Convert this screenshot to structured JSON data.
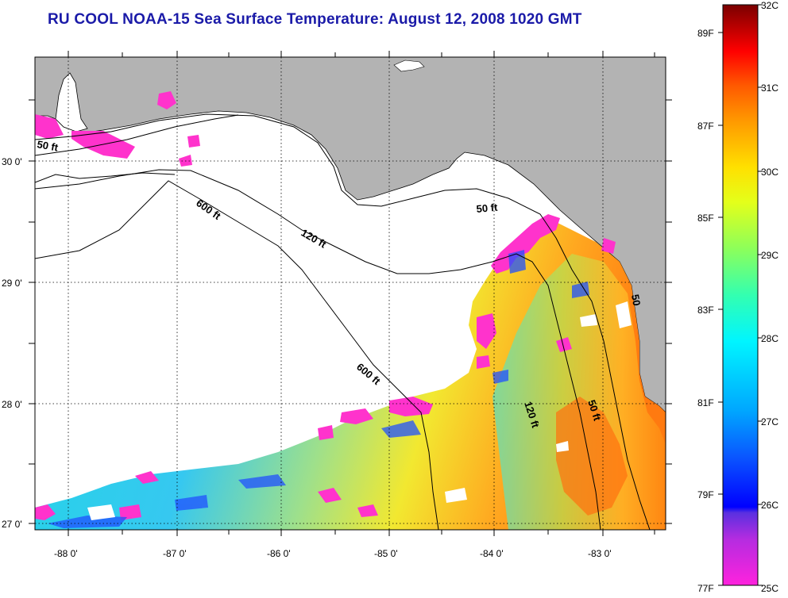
{
  "title": "RU COOL  NOAA-15  Sea Surface Temperature:  August 12, 2008 1020 GMT",
  "map": {
    "lon_range": [
      -88.3,
      -82.5
    ],
    "lat_range": [
      26.95,
      30.85
    ],
    "lon_ticks": [
      {
        "value": -88,
        "label": "-88 0'"
      },
      {
        "value": -87,
        "label": "-87 0'"
      },
      {
        "value": -86,
        "label": "-86 0'"
      },
      {
        "value": -85,
        "label": "-85 0'"
      },
      {
        "value": -84,
        "label": "-84 0'"
      },
      {
        "value": -83,
        "label": "-83 0'"
      }
    ],
    "lat_ticks": [
      {
        "value": 30,
        "label": "30 0'"
      },
      {
        "value": 29,
        "label": "29 0'"
      },
      {
        "value": 28,
        "label": "28 0'"
      },
      {
        "value": 27,
        "label": "27 0'"
      }
    ],
    "contour_labels": [
      "50 ft",
      "600 ft",
      "120 ft",
      "50 ft",
      "600 ft",
      "120 ft",
      "50 ft",
      "50"
    ],
    "colors": {
      "land": "#b3b3b3",
      "water_no_data": "#ffffff",
      "frame": "#000000"
    }
  },
  "colorbar": {
    "celsius_labels": [
      "32C",
      "31C",
      "30C",
      "29C",
      "28C",
      "27C",
      "26C",
      "25C"
    ],
    "fahrenheit_labels": [
      "89F",
      "87F",
      "85F",
      "83F",
      "81F",
      "79F",
      "77F"
    ],
    "celsius_range": [
      25,
      32
    ],
    "colors": [
      "#ff00ff",
      "#6a2bd6",
      "#0000ff",
      "#00bfff",
      "#00ffff",
      "#7fff7f",
      "#ffff00",
      "#ffa500",
      "#ff4500",
      "#ff0000",
      "#8b0000"
    ]
  }
}
